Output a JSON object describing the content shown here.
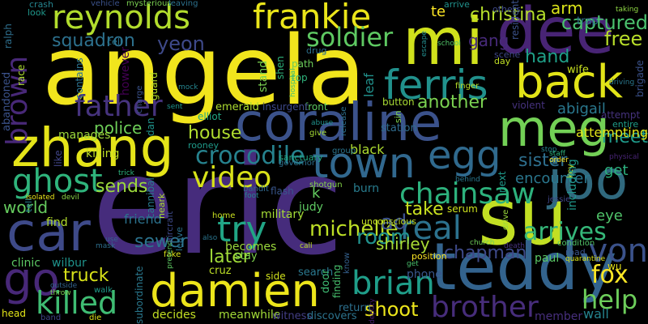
{
  "words": [
    {
      "id": "w1",
      "text": "eric",
      "color": "#462c7c"
    },
    {
      "id": "w2",
      "text": "angela",
      "color": "#f1e51d"
    },
    {
      "id": "w3",
      "text": "coraline",
      "color": "#3b528b"
    },
    {
      "id": "w4",
      "text": "mi",
      "color": "#d0e11c"
    },
    {
      "id": "w5",
      "text": "dee",
      "color": "#482475"
    },
    {
      "id": "w6",
      "text": "zhang",
      "color": "#e5e419"
    },
    {
      "id": "w7",
      "text": "su",
      "color": "#c2df23"
    },
    {
      "id": "w8",
      "text": "teddy",
      "color": "#33638d"
    },
    {
      "id": "w9",
      "text": "back",
      "color": "#e2e418"
    },
    {
      "id": "w10",
      "text": "meg",
      "color": "#73d056"
    },
    {
      "id": "w11",
      "text": "damien",
      "color": "#ece51b"
    },
    {
      "id": "w12",
      "text": "reynolds",
      "color": "#b2dd2d"
    },
    {
      "id": "w13",
      "text": "frankie",
      "color": "#eae51a"
    },
    {
      "id": "w14",
      "text": "joo",
      "color": "#30697e"
    },
    {
      "id": "w15",
      "text": "car",
      "color": "#3e4a89"
    },
    {
      "id": "w16",
      "text": "town",
      "color": "#31688e"
    },
    {
      "id": "w17",
      "text": "egg",
      "color": "#306a8e"
    },
    {
      "id": "w18",
      "text": "ferris",
      "color": "#21918c"
    },
    {
      "id": "w19",
      "text": "chainsaw",
      "color": "#2db27d"
    },
    {
      "id": "w20",
      "text": "go",
      "color": "#482878"
    },
    {
      "id": "w21",
      "text": "killed",
      "color": "#3fbc73"
    },
    {
      "id": "w22",
      "text": "ghost",
      "color": "#2fb47c"
    },
    {
      "id": "w23",
      "text": "try",
      "color": "#21a585"
    },
    {
      "id": "w24",
      "text": "video",
      "color": "#d8e219"
    },
    {
      "id": "w25",
      "text": "brian",
      "color": "#1f9e89"
    },
    {
      "id": "w26",
      "text": "shoot",
      "color": "#ece51b"
    },
    {
      "id": "w27",
      "text": "brother",
      "color": "#472d7b"
    },
    {
      "id": "w28",
      "text": "real",
      "color": "#2c728e"
    },
    {
      "id": "w29",
      "text": "fox",
      "color": "#fde725"
    },
    {
      "id": "w30",
      "text": "help",
      "color": "#6ccd5a"
    },
    {
      "id": "w31",
      "text": "von",
      "color": "#3b528b"
    },
    {
      "id": "w32",
      "text": "arrives",
      "color": "#35b779"
    },
    {
      "id": "w33",
      "text": "soldier",
      "color": "#5ec962"
    },
    {
      "id": "w34",
      "text": "father",
      "color": "#46337e"
    },
    {
      "id": "w35",
      "text": "yeon",
      "color": "#3e4989"
    },
    {
      "id": "w36",
      "text": "crocodile",
      "color": "#26828e"
    },
    {
      "id": "w37",
      "text": "another",
      "color": "#7ad151"
    },
    {
      "id": "w38",
      "text": "christina",
      "color": "#b5de2b"
    },
    {
      "id": "w39",
      "text": "te",
      "color": "#fde725"
    },
    {
      "id": "w40",
      "text": "gang",
      "color": "#472a7a"
    },
    {
      "id": "w41",
      "text": "hand",
      "color": "#1fa088"
    },
    {
      "id": "w42",
      "text": "captured",
      "color": "#4ac16d"
    },
    {
      "id": "w43",
      "text": "free",
      "color": "#b8de29"
    },
    {
      "id": "w44",
      "text": "arm",
      "color": "#dae319"
    },
    {
      "id": "w45",
      "text": "abigail",
      "color": "#2a788e"
    },
    {
      "id": "w46",
      "text": "get",
      "color": "#2cb17e"
    },
    {
      "id": "w47",
      "text": "eye",
      "color": "#50c46a"
    },
    {
      "id": "w48",
      "text": "encounter",
      "color": "#2a778e"
    },
    {
      "id": "w49",
      "text": "sister",
      "color": "#2e6f8e"
    },
    {
      "id": "w50",
      "text": "meet",
      "color": "#1f9a8a"
    },
    {
      "id": "w51",
      "text": "sends",
      "color": "#9bd93c"
    },
    {
      "id": "w52",
      "text": "police",
      "color": "#6ece58"
    },
    {
      "id": "w53",
      "text": "world",
      "color": "#65cb5e"
    },
    {
      "id": "w54",
      "text": "squadron",
      "color": "#2d718e"
    },
    {
      "id": "w55",
      "text": "house",
      "color": "#b0dd2f"
    },
    {
      "id": "w56",
      "text": "black",
      "color": "#addc30"
    },
    {
      "id": "w57",
      "text": "michelle",
      "color": "#bddf26"
    },
    {
      "id": "w58",
      "text": "take",
      "color": "#c8e020"
    },
    {
      "id": "w59",
      "text": "room",
      "color": "#21918c"
    },
    {
      "id": "w60",
      "text": "ad",
      "color": "#3b528b"
    },
    {
      "id": "w61",
      "text": "k",
      "color": "#63cb5f"
    },
    {
      "id": "w62",
      "text": "sewer",
      "color": "#2c738e"
    },
    {
      "id": "w63",
      "text": "later",
      "color": "#a0da39"
    },
    {
      "id": "w64",
      "text": "truck",
      "color": "#d8e219"
    },
    {
      "id": "w65",
      "text": "shirley",
      "color": "#a8db34"
    },
    {
      "id": "w66",
      "text": "chapman",
      "color": "#3e4a89"
    },
    {
      "id": "w67",
      "text": "friend",
      "color": "#2c728e"
    },
    {
      "id": "w68",
      "text": "find",
      "color": "#b2dd2d"
    },
    {
      "id": "w69",
      "text": "becomes",
      "color": "#9bd93c"
    },
    {
      "id": "w70",
      "text": "burn",
      "color": "#287c8e"
    },
    {
      "id": "w71",
      "text": "military",
      "color": "#a5db36"
    },
    {
      "id": "w72",
      "text": "judy",
      "color": "#5ec962"
    },
    {
      "id": "w73",
      "text": "manages",
      "color": "#9dd93b"
    },
    {
      "id": "w74",
      "text": "killing",
      "color": "#c0df25"
    },
    {
      "id": "w75",
      "text": "clinic",
      "color": "#5cc863"
    },
    {
      "id": "w76",
      "text": "wilbur",
      "color": "#1f948c"
    },
    {
      "id": "w77",
      "text": "decides",
      "color": "#c2df23"
    },
    {
      "id": "w78",
      "text": "meanwhile",
      "color": "#a2da37"
    },
    {
      "id": "w79",
      "text": "witness",
      "color": "#433e85"
    },
    {
      "id": "w80",
      "text": "discovers",
      "color": "#2c738e"
    },
    {
      "id": "w81",
      "text": "return",
      "color": "#2d708e"
    },
    {
      "id": "w82",
      "text": "member",
      "color": "#472f7d"
    },
    {
      "id": "w83",
      "text": "wall",
      "color": "#25848e"
    },
    {
      "id": "w84",
      "text": "station",
      "color": "#2f6c8e"
    },
    {
      "id": "w85",
      "text": "phone",
      "color": "#39568c"
    },
    {
      "id": "w86",
      "text": "paul",
      "color": "#5ac864"
    },
    {
      "id": "w87",
      "text": "wu",
      "color": "#e7e419"
    },
    {
      "id": "w88",
      "text": "head",
      "color": "#e2e418"
    },
    {
      "id": "w89",
      "text": "search",
      "color": "#2a788e"
    },
    {
      "id": "w90",
      "text": "stay",
      "color": "#7fd34e"
    },
    {
      "id": "w91",
      "text": "side",
      "color": "#d0e11c"
    },
    {
      "id": "w92",
      "text": "cruz",
      "color": "#bddf26"
    },
    {
      "id": "w93",
      "text": "front",
      "color": "#5cc863"
    },
    {
      "id": "w94",
      "text": "insurgent",
      "color": "#3e4989"
    },
    {
      "id": "w95",
      "text": "emerald",
      "color": "#addc30"
    },
    {
      "id": "w96",
      "text": "button",
      "color": "#a8db34"
    },
    {
      "id": "w97",
      "text": "top",
      "color": "#2fb47c"
    },
    {
      "id": "w98",
      "text": "path",
      "color": "#6ccd5a"
    },
    {
      "id": "w99",
      "text": "drug",
      "color": "#2d718e"
    },
    {
      "id": "w100",
      "text": "crash",
      "color": "#25848e"
    },
    {
      "id": "w101",
      "text": "look",
      "color": "#1f988b"
    },
    {
      "id": "w102",
      "text": "cell",
      "color": "#2a778e"
    },
    {
      "id": "w103",
      "text": "elliot",
      "color": "#22a884"
    },
    {
      "id": "w104",
      "text": "rooney",
      "color": "#1f9a8a"
    },
    {
      "id": "w105",
      "text": "flash",
      "color": "#39568c"
    },
    {
      "id": "w106",
      "text": "shotgun",
      "color": "#86d549"
    },
    {
      "id": "w107",
      "text": "sanctuary",
      "color": "#22a884"
    },
    {
      "id": "w108",
      "text": "governor",
      "color": "#2d708e"
    },
    {
      "id": "w109",
      "text": "give",
      "color": "#a5db36"
    },
    {
      "id": "w110",
      "text": "abuse",
      "color": "#20928c"
    },
    {
      "id": "w111",
      "text": "group",
      "color": "#2b758e"
    },
    {
      "id": "w112",
      "text": "vehicle",
      "color": "#3b528b"
    },
    {
      "id": "w113",
      "text": "mysterious",
      "color": "#7ad151"
    },
    {
      "id": "w114",
      "text": "leaving",
      "color": "#2c728e"
    },
    {
      "id": "w115",
      "text": "arrive",
      "color": "#21918c"
    },
    {
      "id": "w116",
      "text": "others",
      "color": "#3e4989"
    },
    {
      "id": "w117",
      "text": "trap",
      "color": "#2e6f8e"
    },
    {
      "id": "w118",
      "text": "taking",
      "color": "#8fd744"
    },
    {
      "id": "w119",
      "text": "wife",
      "color": "#c8e020"
    },
    {
      "id": "w120",
      "text": "scene",
      "color": "#3f4889"
    },
    {
      "id": "w121",
      "text": "day",
      "color": "#c0df25"
    },
    {
      "id": "w122",
      "text": "driving",
      "color": "#2a788e"
    },
    {
      "id": "w123",
      "text": "violent",
      "color": "#46327e"
    },
    {
      "id": "w124",
      "text": "attempt",
      "color": "#46337e"
    },
    {
      "id": "w125",
      "text": "entire",
      "color": "#1f9e89"
    },
    {
      "id": "w126",
      "text": "attempting",
      "color": "#e2e418"
    },
    {
      "id": "w127",
      "text": "physical",
      "color": "#482475"
    },
    {
      "id": "w128",
      "text": "stop",
      "color": "#26828e"
    },
    {
      "id": "w129",
      "text": "staff",
      "color": "#2db27d"
    },
    {
      "id": "w130",
      "text": "order",
      "color": "#fde725"
    },
    {
      "id": "w131",
      "text": "finger",
      "color": "#b8de29"
    },
    {
      "id": "w132",
      "text": "serum",
      "color": "#cde11d"
    },
    {
      "id": "w133",
      "text": "behind",
      "color": "#2a788e"
    },
    {
      "id": "w134",
      "text": "jessie",
      "color": "#3f4788"
    },
    {
      "id": "w135",
      "text": "condition",
      "color": "#52c569"
    },
    {
      "id": "w136",
      "text": "road",
      "color": "#3a548c"
    },
    {
      "id": "w137",
      "text": "quarantine",
      "color": "#dae319"
    },
    {
      "id": "w138",
      "text": "death",
      "color": "#46327e"
    },
    {
      "id": "w139",
      "text": "church",
      "color": "#6ece58"
    },
    {
      "id": "w140",
      "text": "call",
      "color": "#bddf26"
    },
    {
      "id": "w141",
      "text": "get",
      "color": "#4ac16d"
    },
    {
      "id": "w142",
      "text": "position",
      "color": "#fde725"
    },
    {
      "id": "w143",
      "text": "unconscious",
      "color": "#c2df23"
    },
    {
      "id": "w144",
      "text": "foot",
      "color": "#25848e"
    },
    {
      "id": "w145",
      "text": "bandit",
      "color": "#31688e"
    },
    {
      "id": "w146",
      "text": "home",
      "color": "#c8e020"
    },
    {
      "id": "w147",
      "text": "also",
      "color": "#2b758e"
    },
    {
      "id": "w148",
      "text": "fake",
      "color": "#dae319"
    },
    {
      "id": "w149",
      "text": "die",
      "color": "#dde318"
    },
    {
      "id": "w150",
      "text": "band",
      "color": "#404588"
    },
    {
      "id": "w151",
      "text": "outside",
      "color": "#33638d"
    },
    {
      "id": "w152",
      "text": "throw",
      "color": "#7ad151"
    },
    {
      "id": "w153",
      "text": "walk",
      "color": "#1f9a8a"
    },
    {
      "id": "w154",
      "text": "use",
      "color": "#33638d"
    },
    {
      "id": "w155",
      "text": "mask",
      "color": "#2e6f8e"
    },
    {
      "id": "w156",
      "text": "isolated",
      "color": "#e7e419"
    },
    {
      "id": "w157",
      "text": "devil",
      "color": "#8bd646"
    },
    {
      "id": "w158",
      "text": "trick",
      "color": "#2db27d"
    },
    {
      "id": "w159",
      "text": "mock",
      "color": "#25848e"
    },
    {
      "id": "w160",
      "text": "sent",
      "color": "#1f948c"
    },
    {
      "id": "w161",
      "text": "school",
      "color": "#52c569"
    },
    {
      "id": "w162",
      "text": "brown",
      "color": "#482878"
    },
    {
      "id": "w163",
      "text": "guard",
      "color": "#b5de2b"
    },
    {
      "id": "w164",
      "text": "contains",
      "color": "#2c728e"
    },
    {
      "id": "w165",
      "text": "however",
      "color": "#440154"
    },
    {
      "id": "w166",
      "text": "stand",
      "color": "#7ad151"
    },
    {
      "id": "w167",
      "text": "shen",
      "color": "#2fb47c"
    },
    {
      "id": "w168",
      "text": "dan",
      "color": "#1f948c"
    },
    {
      "id": "w169",
      "text": "neark",
      "color": "#addc30"
    },
    {
      "id": "w170",
      "text": "cannibal",
      "color": "#287c8e"
    },
    {
      "id": "w171",
      "text": "hospital",
      "color": "#44bf70"
    },
    {
      "id": "w172",
      "text": "abandoned",
      "color": "#3b528b"
    },
    {
      "id": "w173",
      "text": "ralph",
      "color": "#2e6f8e"
    },
    {
      "id": "w174",
      "text": "race",
      "color": "#addc30"
    },
    {
      "id": "w175",
      "text": "leaf",
      "color": "#21918c"
    },
    {
      "id": "w176",
      "text": "next",
      "color": "#1f9a8a"
    },
    {
      "id": "w177",
      "text": "resident",
      "color": "#3b528b"
    },
    {
      "id": "w178",
      "text": "escape",
      "color": "#228c8d"
    },
    {
      "id": "w179",
      "text": "brigade",
      "color": "#3b528b"
    },
    {
      "id": "w180",
      "text": "key",
      "color": "#c0df25"
    },
    {
      "id": "w181",
      "text": "including",
      "color": "#1f988b"
    },
    {
      "id": "w182",
      "text": "drive",
      "color": "#9bd93c"
    },
    {
      "id": "w183",
      "text": "release",
      "color": "#2d718e"
    },
    {
      "id": "w184",
      "text": "know",
      "color": "#34608d"
    },
    {
      "id": "w185",
      "text": "sin",
      "color": "#7fd34e"
    },
    {
      "id": "w186",
      "text": "finding",
      "color": "#48c16e"
    },
    {
      "id": "w187",
      "text": "door",
      "color": "#3fbc73"
    },
    {
      "id": "w188",
      "text": "deputy",
      "color": "#481f70"
    },
    {
      "id": "w189",
      "text": "pretend",
      "color": "#5ec962"
    },
    {
      "id": "w190",
      "text": "aircraft",
      "color": "#3e4989"
    },
    {
      "id": "w191",
      "text": "leave",
      "color": "#2c728e"
    },
    {
      "id": "w192",
      "text": "subordinate",
      "color": "#2a788e"
    },
    {
      "id": "w193",
      "text": "tell",
      "color": "#26828e"
    },
    {
      "id": "w194",
      "text": "like",
      "color": "#404588"
    },
    {
      "id": "w195",
      "text": "charge",
      "color": "#3b528b"
    },
    {
      "id": "w196",
      "text": "left",
      "color": "#addc30"
    }
  ]
}
